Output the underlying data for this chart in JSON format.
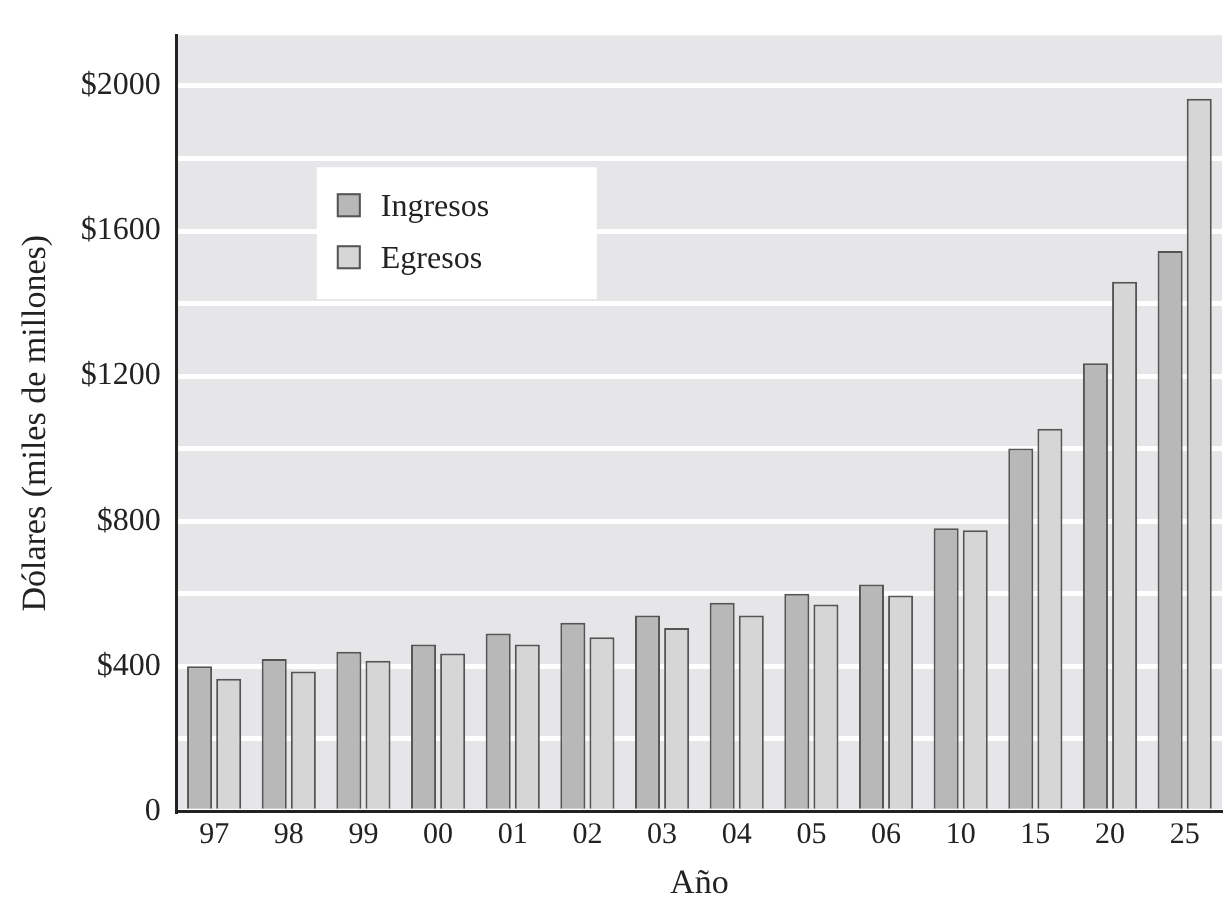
{
  "chart_data": {
    "type": "bar",
    "xlabel": "Año",
    "ylabel": "Dólares (miles de millones)",
    "categories": [
      "97",
      "98",
      "99",
      "00",
      "01",
      "02",
      "03",
      "04",
      "05",
      "06",
      "10",
      "15",
      "20",
      "25"
    ],
    "series": [
      {
        "name": "Ingresos",
        "color": "#b8b8b8",
        "values": [
          400,
          420,
          440,
          460,
          490,
          520,
          540,
          575,
          600,
          625,
          780,
          1000,
          1235,
          1545
        ]
      },
      {
        "name": "Egresos",
        "color": "#d6d6d6",
        "values": [
          365,
          385,
          415,
          435,
          460,
          480,
          505,
          540,
          570,
          595,
          775,
          1055,
          1460,
          1965
        ]
      }
    ],
    "ylim": [
      0,
      2140
    ],
    "yticks": [
      0,
      {
        "value": 200,
        "label": null
      },
      {
        "value": 400,
        "label": "$400"
      },
      {
        "value": 600,
        "label": null
      },
      {
        "value": 800,
        "label": "$800"
      },
      {
        "value": 1000,
        "label": null
      },
      {
        "value": 1200,
        "label": "$1200"
      },
      {
        "value": 1400,
        "label": null
      },
      {
        "value": 1600,
        "label": "$1600"
      },
      {
        "value": 1800,
        "label": null
      },
      {
        "value": 2000,
        "label": "$2000"
      }
    ],
    "grid": "y",
    "legend": "top left"
  }
}
